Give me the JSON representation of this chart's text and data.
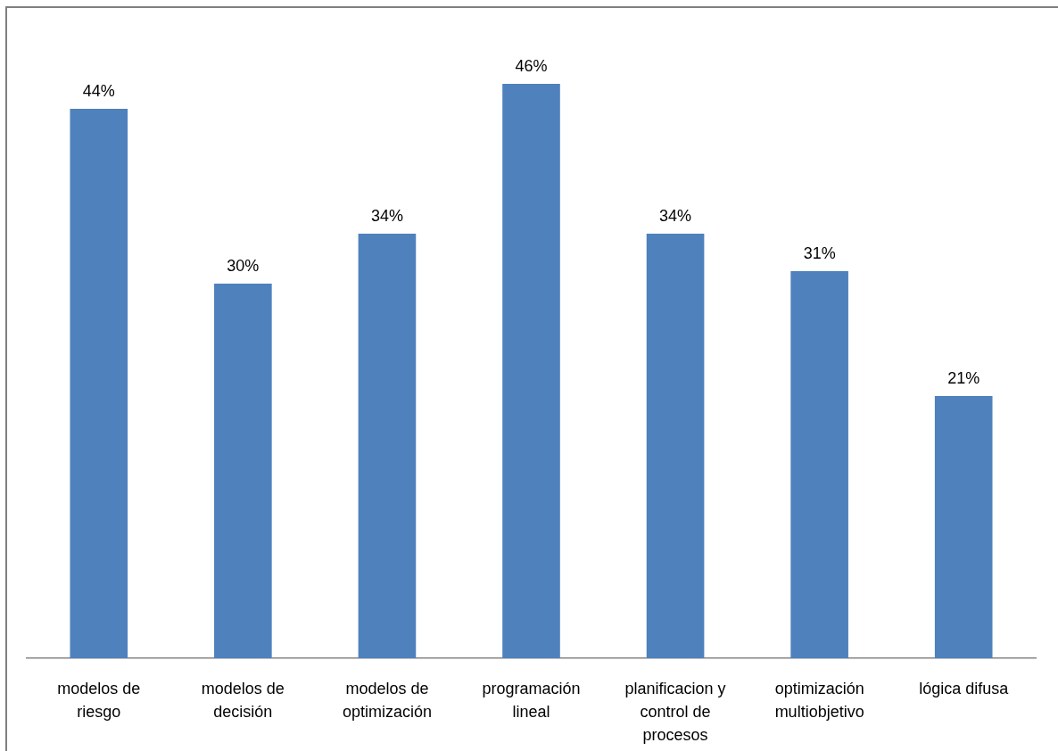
{
  "chart_data": {
    "type": "bar",
    "categories": [
      "modelos de riesgo",
      "modelos de decisión",
      "modelos de optimización",
      "programación lineal",
      "planificacion y control de procesos",
      "optimización multiobjetivo",
      "lógica difusa"
    ],
    "values": [
      44,
      30,
      34,
      46,
      34,
      31,
      21
    ],
    "color": "#4f81bd",
    "value_labels": [
      "44%",
      "30%",
      "34%",
      "46%",
      "34%",
      "31%",
      "21%"
    ]
  }
}
